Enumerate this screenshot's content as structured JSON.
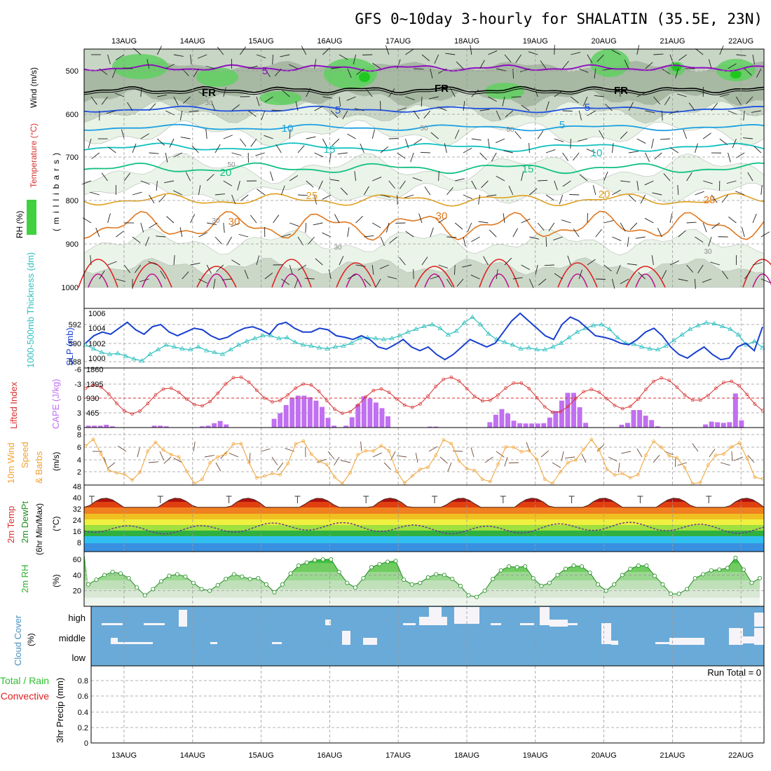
{
  "chart_data": {
    "type": "meteogram",
    "title": "GFS 0~10day 3-hourly for SHALATIN (35.5E, 23N)",
    "dates": [
      "13AUG",
      "14AUG",
      "15AUG",
      "16AUG",
      "17AUG",
      "18AUG",
      "19AUG",
      "20AUG",
      "21AUG",
      "22AUG"
    ],
    "colors": {
      "rh_light": "#e8f3e6",
      "rh_mid": "#c8d6c5",
      "rh_dark": "#a7b8a3",
      "rh_green": "#5fd060",
      "rh_bright": "#1ec81e",
      "isotherm_purple": "#9010c0",
      "isotherm_freeze": "#000000",
      "isotherm_blue": "#1e50e0",
      "isotherm_lightblue": "#1ea0e0",
      "isotherm_cyan": "#10c0c0",
      "isotherm_green": "#10c080",
      "isotherm_gold": "#e0a020",
      "isotherm_orange": "#e07820",
      "isotherm_red": "#e02020",
      "isotherm_magenta": "#c01090",
      "slp": "#1840d0",
      "thickness": "#30c0c0",
      "lifted": "#d83030",
      "cape": "#c070f0",
      "wind10": "#f0a030",
      "cloud": "#6aaad8",
      "rh2m": "#40c040"
    },
    "upper_air": {
      "ylabel": "(millibars)",
      "legend_wind": "Wind (m/s)",
      "legend_temp": "Temperature (°C)",
      "legend_rh": "RH (%)",
      "y_ticks": [
        "500",
        "600",
        "700",
        "800",
        "900",
        "1000"
      ],
      "contour_labels": [
        "5",
        "FR",
        "5",
        "10",
        "15",
        "20",
        "25",
        "30",
        "30",
        "5",
        "FR",
        "5",
        "10",
        "15",
        "20",
        "25",
        "30",
        "50",
        "50",
        "50",
        "30",
        "30",
        "30",
        "FR"
      ]
    },
    "slp_panel": {
      "label_thickness": "1000-500mb Thickness (dm)",
      "label_slp": "SLP (mb)",
      "left_ticks": [
        "592",
        "590",
        "588"
      ],
      "right_ticks": [
        "1006",
        "1004",
        "1002",
        "1000"
      ],
      "slp_values": [
        1002.0,
        1003.0,
        1003.5,
        1003.2,
        1004.0,
        1004.8,
        1003.8,
        1003.2,
        1004.2,
        1004.5,
        1003.5,
        1003.0,
        1003.5,
        1004.0,
        1003.8,
        1003.0,
        1002.5,
        1002.8,
        1003.5,
        1004.0,
        1004.2,
        1003.8,
        1003.2,
        1004.5,
        1004.8,
        1004.0,
        1003.5,
        1003.5,
        1004.0,
        1003.8,
        1003.0,
        1002.8,
        1002.5,
        1003.0,
        1002.5,
        1001.5,
        1001.2,
        1001.8,
        1002.5,
        1001.5,
        1001.0,
        1001.5,
        1000.5,
        999.8,
        1000.5,
        1001.5,
        1002.5,
        1002.0,
        1001.5,
        1002.0,
        1003.5,
        1005.0,
        1006.0,
        1005.0,
        1004.0,
        1003.0,
        1002.5,
        1004.5,
        1005.5,
        1005.0,
        1004.0,
        1003.0,
        1002.8,
        1002.5,
        1002.0,
        1001.8,
        1002.5,
        1003.5,
        1004.0,
        1003.0,
        1001.5,
        1000.5,
        1000.0,
        1000.8,
        1001.5,
        1000.5,
        999.8,
        1000.0,
        1001.5,
        1002.0,
        1001.0,
        1004.2
      ],
      "thickness_values": [
        589.8,
        589.4,
        589.0,
        588.8,
        588.9,
        588.6,
        588.3,
        588.1,
        588.8,
        589.3,
        589.8,
        589.6,
        589.4,
        589.3,
        589.6,
        589.2,
        589.0,
        588.8,
        589.3,
        589.8,
        590.2,
        590.5,
        590.8,
        590.8,
        590.5,
        590.6,
        590.1,
        589.8,
        589.7,
        589.5,
        589.4,
        589.6,
        589.7,
        590.0,
        590.5,
        590.6,
        590.5,
        590.4,
        590.5,
        590.8,
        591.2,
        591.5,
        591.8,
        592.0,
        591.6,
        590.9,
        591.3,
        592.2,
        592.8,
        592.0,
        591.0,
        590.4,
        590.1,
        589.8,
        589.4,
        589.5,
        589.3,
        589.3,
        589.6,
        590.0,
        590.6,
        591.2,
        591.6,
        591.9,
        592.0,
        591.5,
        590.6,
        590.0,
        589.9,
        589.6,
        589.4,
        589.3,
        589.7,
        590.3,
        590.9,
        591.5,
        591.9,
        592.2,
        592.1,
        591.8,
        591.5,
        590.9,
        589.8,
        590.2,
        589.5
      ]
    },
    "cape_panel": {
      "label_lifted": "Lifted Index",
      "label_cape": "CAPE (J/kg)",
      "left_ticks": [
        "-6",
        "-3",
        "0",
        "3",
        "6"
      ],
      "right_ticks": [
        "1860",
        "1395",
        "930",
        "465"
      ],
      "cape_values": [
        60,
        60,
        60,
        90,
        40,
        0,
        0,
        0,
        0,
        0,
        0,
        60,
        60,
        40,
        0,
        0,
        0,
        0,
        0,
        40,
        60,
        140,
        210,
        100,
        0,
        0,
        0,
        0,
        0,
        0,
        0,
        280,
        460,
        720,
        960,
        1020,
        1020,
        970,
        860,
        660,
        310,
        60,
        0,
        60,
        330,
        740,
        1000,
        930,
        800,
        620,
        360,
        0,
        0,
        0,
        0,
        0,
        0,
        30,
        30,
        0,
        0,
        0,
        0,
        0,
        0,
        0,
        0,
        170,
        410,
        590,
        450,
        220,
        140,
        130,
        130,
        130,
        140,
        320,
        530,
        860,
        1110,
        1110,
        650,
        150,
        0,
        0,
        0,
        0,
        0,
        90,
        150,
        560,
        560,
        380,
        240,
        40,
        0,
        0,
        0,
        0,
        0,
        0,
        0,
        100,
        190,
        170,
        150,
        170,
        1090,
        230,
        0,
        0,
        0
      ]
    },
    "wind10_panel": {
      "label": "10m Wind Speed & Barbs (m/s)",
      "y_ticks": [
        "8",
        "6",
        "4",
        "2"
      ]
    },
    "temp2m_panel": {
      "label": "2m Temp 2m DewPt (6hr Min/Max) (°C)",
      "y_ticks": [
        "48",
        "40",
        "32",
        "24",
        "16",
        "8"
      ]
    },
    "rh2m_panel": {
      "label": "2m RH (%)",
      "y_ticks": [
        "60",
        "40",
        "20"
      ],
      "values": [
        28,
        34,
        40,
        44,
        42,
        36,
        24,
        14,
        22,
        32,
        39,
        41,
        38,
        30,
        22,
        20,
        27,
        35,
        41,
        38,
        35,
        36,
        28,
        18,
        28,
        42,
        52,
        56,
        59,
        60,
        60,
        44,
        30,
        24,
        36,
        50,
        54,
        57,
        58,
        34,
        28,
        30,
        37,
        41,
        40,
        35,
        26,
        14,
        12,
        20,
        35,
        46,
        51,
        50,
        51,
        36,
        26,
        30,
        40,
        48,
        52,
        51,
        43,
        28,
        20,
        28,
        40,
        48,
        52,
        52,
        39,
        28,
        16,
        16,
        22,
        36,
        41,
        46,
        47,
        49,
        62,
        47,
        30,
        36
      ]
    },
    "cloud_panel": {
      "label": "Cloud Cover (%)",
      "y_ticks": [
        "high",
        "middle",
        "low"
      ]
    },
    "precip_panel": {
      "label_total": "Total / Rain",
      "label_conv": "Convective",
      "ylabel": "3hr Precip (mm)",
      "y_ticks": [
        "0.8",
        "0.6",
        "0.4",
        "0.2",
        "0"
      ],
      "run_total": "Run Total = 0"
    }
  }
}
